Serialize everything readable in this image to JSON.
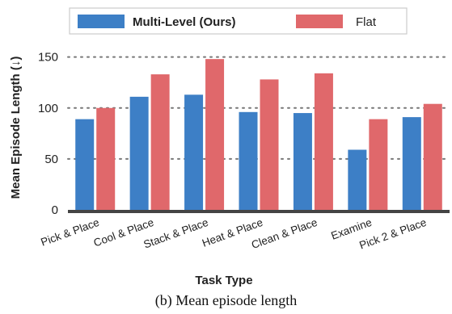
{
  "caption": "(b) Mean episode length",
  "colors": {
    "multi_level": "#3d7fc6",
    "flat": "#e0686b",
    "grid": "#777777",
    "axis": "#444444"
  },
  "chart_data": {
    "type": "bar",
    "xlabel": "Task Type",
    "ylabel": "Mean Episode Length (↓)",
    "ylim": [
      0,
      160
    ],
    "yticks": [
      0,
      50,
      100,
      150
    ],
    "grid": true,
    "legend_position": "top",
    "categories": [
      "Pick & Place",
      "Cool & Place",
      "Stack & Place",
      "Heat & Place",
      "Clean & Place",
      "Examine",
      "Pick 2 & Place"
    ],
    "series": [
      {
        "name": "Multi-Level (Ours)",
        "values": [
          89,
          111,
          113,
          96,
          95,
          59,
          91
        ]
      },
      {
        "name": "Flat",
        "values": [
          100,
          133,
          148,
          128,
          134,
          89,
          104
        ]
      }
    ]
  }
}
